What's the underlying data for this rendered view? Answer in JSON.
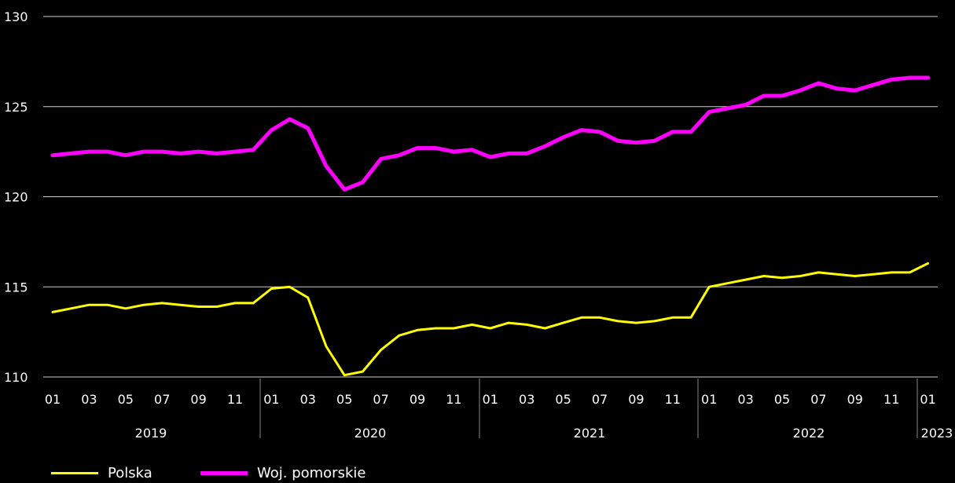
{
  "chart_data": {
    "type": "line",
    "y_ticks": [
      "130",
      "125",
      "120",
      "115",
      "110"
    ],
    "ylim": [
      110,
      130
    ],
    "x_tick_labels": [
      "01",
      "03",
      "05",
      "07",
      "09",
      "11",
      "01",
      "03",
      "05",
      "07",
      "09",
      "11",
      "01",
      "03",
      "05",
      "07",
      "09",
      "11",
      "01",
      "03",
      "05",
      "07",
      "09",
      "11",
      "01"
    ],
    "years": [
      "2019",
      "2020",
      "2021",
      "2022",
      "2023"
    ],
    "x": [
      "2019-01",
      "2019-02",
      "2019-03",
      "2019-04",
      "2019-05",
      "2019-06",
      "2019-07",
      "2019-08",
      "2019-09",
      "2019-10",
      "2019-11",
      "2019-12",
      "2020-01",
      "2020-02",
      "2020-03",
      "2020-04",
      "2020-05",
      "2020-06",
      "2020-07",
      "2020-08",
      "2020-09",
      "2020-10",
      "2020-11",
      "2020-12",
      "2021-01",
      "2021-02",
      "2021-03",
      "2021-04",
      "2021-05",
      "2021-06",
      "2021-07",
      "2021-08",
      "2021-09",
      "2021-10",
      "2021-11",
      "2021-12",
      "2022-01",
      "2022-02",
      "2022-03",
      "2022-04",
      "2022-05",
      "2022-06",
      "2022-07",
      "2022-08",
      "2022-09",
      "2022-10",
      "2022-11",
      "2022-12",
      "2023-01"
    ],
    "series": [
      {
        "name": "Polska",
        "color": "#ffff00",
        "values": [
          113.6,
          113.8,
          114.0,
          114.0,
          113.8,
          114.0,
          114.1,
          114.0,
          113.9,
          113.9,
          114.1,
          114.1,
          114.9,
          115.0,
          114.4,
          111.7,
          110.1,
          110.3,
          111.5,
          112.3,
          112.6,
          112.7,
          112.7,
          112.9,
          112.7,
          113.0,
          112.9,
          112.7,
          113.0,
          113.3,
          113.3,
          113.1,
          113.0,
          113.1,
          113.3,
          113.3,
          115.0,
          115.2,
          115.4,
          115.6,
          115.5,
          115.6,
          115.8,
          115.7,
          115.6,
          115.7,
          115.8,
          115.8,
          116.3
        ]
      },
      {
        "name": "Woj. pomorskie",
        "color": "#ff00ff",
        "values": [
          122.3,
          122.4,
          122.5,
          122.5,
          122.3,
          122.5,
          122.5,
          122.4,
          122.5,
          122.4,
          122.5,
          122.6,
          123.7,
          124.3,
          123.8,
          121.7,
          120.4,
          120.8,
          122.1,
          122.3,
          122.7,
          122.7,
          122.5,
          122.6,
          122.2,
          122.4,
          122.4,
          122.8,
          123.3,
          123.7,
          123.6,
          123.1,
          123.0,
          123.1,
          123.6,
          123.6,
          124.7,
          124.9,
          125.1,
          125.6,
          125.6,
          125.9,
          126.3,
          126.0,
          125.9,
          126.2,
          126.5,
          126.6,
          126.6
        ]
      }
    ],
    "legend_position": "bottom-left",
    "grid": "horizontal"
  }
}
